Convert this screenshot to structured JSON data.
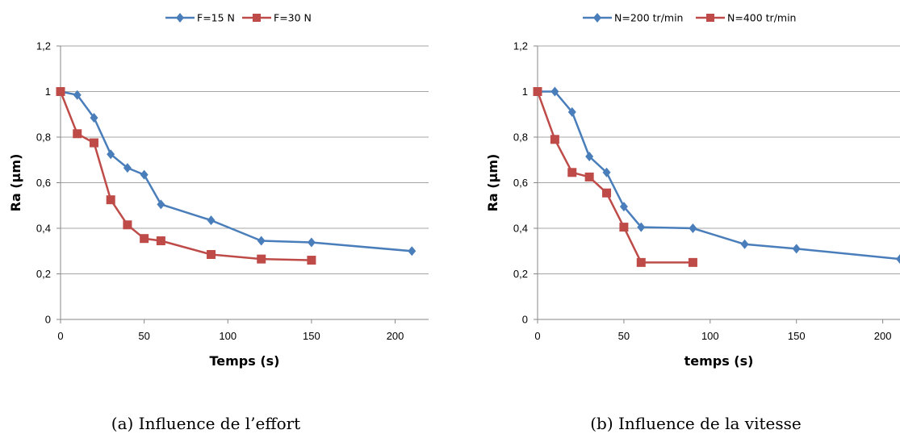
{
  "chart_data": [
    {
      "type": "line",
      "xlabel": "Temps (s)",
      "ylabel": "Ra (µm)",
      "xlim": [
        0,
        220
      ],
      "ylim": [
        0,
        1.2
      ],
      "xticks": [
        0,
        50,
        100,
        150,
        200
      ],
      "xtick_labels": [
        "0",
        "50",
        "100",
        "150",
        "200"
      ],
      "yticks": [
        0,
        0.2,
        0.4,
        0.6,
        0.8,
        1,
        1.2
      ],
      "ytick_labels": [
        "0",
        "0,2",
        "0,4",
        "0,6",
        "0,8",
        "1",
        "1,2"
      ],
      "grid": "horizontal",
      "legend": "top",
      "caption": "(a)  Influence de l’effort",
      "series": [
        {
          "name": "F=15 N",
          "color": "#4a7ebb",
          "marker": "diamond",
          "x": [
            0,
            10,
            20,
            30,
            40,
            50,
            60,
            90,
            120,
            150,
            210
          ],
          "y": [
            1.0,
            0.985,
            0.885,
            0.725,
            0.665,
            0.635,
            0.505,
            0.435,
            0.345,
            0.338,
            0.3
          ]
        },
        {
          "name": "F=30 N",
          "color": "#be4b48",
          "marker": "square",
          "x": [
            0,
            10,
            20,
            30,
            40,
            50,
            60,
            90,
            120,
            150
          ],
          "y": [
            1.0,
            0.815,
            0.775,
            0.525,
            0.415,
            0.355,
            0.345,
            0.285,
            0.265,
            0.26
          ]
        }
      ]
    },
    {
      "type": "line",
      "xlabel": "temps (s)",
      "ylabel": "Ra (µm)",
      "xlim": [
        0,
        210
      ],
      "ylim": [
        0,
        1.2
      ],
      "xticks": [
        0,
        50,
        100,
        150,
        200
      ],
      "xtick_labels": [
        "0",
        "50",
        "100",
        "150",
        "200"
      ],
      "yticks": [
        0,
        0.2,
        0.4,
        0.6,
        0.8,
        1,
        1.2
      ],
      "ytick_labels": [
        "0",
        "0,2",
        "0,4",
        "0,6",
        "0,8",
        "1",
        "1,2"
      ],
      "grid": "horizontal",
      "legend": "top",
      "caption": "(b)  Influence de la vitesse",
      "series": [
        {
          "name": "N=200 tr/min",
          "color": "#4a7ebb",
          "marker": "diamond",
          "x": [
            0,
            10,
            20,
            30,
            40,
            50,
            60,
            90,
            120,
            150,
            210
          ],
          "y": [
            1.0,
            1.0,
            0.91,
            0.715,
            0.645,
            0.495,
            0.405,
            0.4,
            0.33,
            0.31,
            0.265
          ]
        },
        {
          "name": "N=400 tr/min",
          "color": "#be4b48",
          "marker": "square",
          "x": [
            0,
            10,
            20,
            30,
            40,
            50,
            60,
            90
          ],
          "y": [
            1.0,
            0.79,
            0.645,
            0.625,
            0.555,
            0.405,
            0.25,
            0.25
          ]
        }
      ]
    }
  ]
}
